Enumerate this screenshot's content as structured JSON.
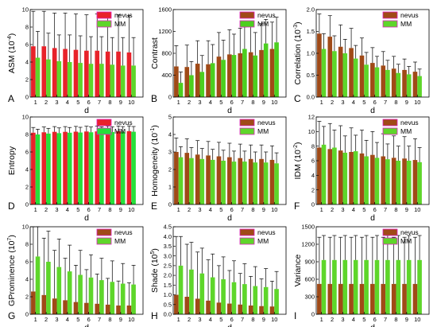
{
  "series_colors": {
    "nevus_variants": [
      "#e8222a",
      "#a04a17",
      "#a04a17",
      "#e8222a",
      "#a04a17",
      "#a04a17",
      "#a04a17",
      "#a04a17",
      "#a04a17"
    ],
    "mm_variants": [
      "#5ed62a",
      "#4ccf1f",
      "#5ed62a",
      "#26e03a",
      "#5ed62a",
      "#5ed62a",
      "#5ed62a",
      "#5ed62a",
      "#5ed62a"
    ],
    "legend_frame": "#e020c0"
  },
  "chart_data": [
    {
      "type": "bar",
      "panel": "A",
      "xlabel": "d",
      "ylabel": "ASM (10",
      "ylabel_sup": "-4",
      "ylabel_end": ")",
      "ylim": [
        0,
        10
      ],
      "yticks": [
        "0",
        "2",
        "4",
        "6",
        "8",
        "10"
      ],
      "categories": [
        "1",
        "2",
        "3",
        "4",
        "5",
        "6",
        "7",
        "8",
        "9",
        "10"
      ],
      "legend_position": "top-right",
      "series": [
        {
          "name": "nevus",
          "values": [
            5.8,
            5.8,
            5.6,
            5.5,
            5.4,
            5.3,
            5.3,
            5.2,
            5.2,
            5.1
          ],
          "errors": [
            4.0,
            4.0,
            4.0,
            4.1,
            4.1,
            4.1,
            4.2,
            4.2,
            4.2,
            4.2
          ]
        },
        {
          "name": "MM",
          "values": [
            4.5,
            4.3,
            4.1,
            4.0,
            3.9,
            3.8,
            3.8,
            3.7,
            3.6,
            3.6
          ],
          "errors": [
            3.0,
            3.0,
            3.0,
            3.1,
            3.1,
            3.1,
            3.1,
            3.1,
            3.2,
            3.2
          ]
        }
      ]
    },
    {
      "type": "bar",
      "panel": "B",
      "xlabel": "d",
      "ylabel": "Contrast",
      "ylabel_sup": "",
      "ylabel_end": "",
      "ylim": [
        0,
        1600
      ],
      "yticks": [
        "0",
        "400",
        "800",
        "1200",
        "1600"
      ],
      "categories": [
        "1",
        "2",
        "3",
        "4",
        "5",
        "6",
        "7",
        "8",
        "9",
        "10"
      ],
      "legend_position": "top-right",
      "series": [
        {
          "name": "nevus",
          "values": [
            560,
            550,
            610,
            600,
            740,
            780,
            800,
            820,
            860,
            880
          ],
          "errors": [
            380,
            400,
            420,
            430,
            440,
            450,
            460,
            470,
            480,
            490
          ]
        },
        {
          "name": "MM",
          "values": [
            260,
            400,
            460,
            620,
            680,
            770,
            880,
            760,
            980,
            1000
          ],
          "errors": [
            200,
            250,
            300,
            340,
            360,
            380,
            400,
            420,
            440,
            460
          ]
        }
      ]
    },
    {
      "type": "bar",
      "panel": "C",
      "xlabel": "d",
      "ylabel": "Correlation (10",
      "ylabel_sup": "-3",
      "ylabel_end": ")",
      "ylim": [
        0,
        2.0
      ],
      "yticks": [
        "0.0",
        "0.5",
        "1.0",
        "1.5",
        "2.0"
      ],
      "categories": [
        "1",
        "2",
        "3",
        "4",
        "5",
        "6",
        "7",
        "8",
        "9",
        "10"
      ],
      "legend_position": "top-right",
      "series": [
        {
          "name": "nevus",
          "values": [
            1.45,
            1.38,
            1.15,
            1.12,
            0.95,
            0.78,
            0.72,
            0.65,
            0.62,
            0.58
          ],
          "errors": [
            0.45,
            0.48,
            0.5,
            0.45,
            0.4,
            0.35,
            0.32,
            0.28,
            0.25,
            0.22
          ]
        },
        {
          "name": "MM",
          "values": [
            1.1,
            1.05,
            1.0,
            0.88,
            0.74,
            0.68,
            0.62,
            0.55,
            0.52,
            0.48
          ],
          "errors": [
            0.35,
            0.35,
            0.32,
            0.3,
            0.28,
            0.25,
            0.22,
            0.2,
            0.18,
            0.16
          ]
        }
      ]
    },
    {
      "type": "bar",
      "panel": "D",
      "xlabel": "d",
      "ylabel": "Entropy",
      "ylabel_sup": "",
      "ylabel_end": "",
      "ylim": [
        0,
        10
      ],
      "yticks": [
        "0",
        "2",
        "4",
        "6",
        "8",
        "10"
      ],
      "categories": [
        "1",
        "2",
        "3",
        "4",
        "5",
        "6",
        "7",
        "8",
        "9",
        "10"
      ],
      "legend_position": "top-right",
      "series": [
        {
          "name": "nevus",
          "values": [
            8.2,
            8.25,
            8.3,
            8.3,
            8.32,
            8.34,
            8.35,
            8.36,
            8.37,
            8.38
          ],
          "errors": [
            0.6,
            0.6,
            0.6,
            0.6,
            0.6,
            0.6,
            0.6,
            0.6,
            0.6,
            0.6
          ]
        },
        {
          "name": "MM",
          "values": [
            8.0,
            8.1,
            8.15,
            8.2,
            8.22,
            8.25,
            8.27,
            8.28,
            8.3,
            8.31
          ],
          "errors": [
            0.6,
            0.6,
            0.6,
            0.6,
            0.6,
            0.6,
            0.6,
            0.6,
            0.6,
            0.6
          ]
        }
      ]
    },
    {
      "type": "bar",
      "panel": "E",
      "xlabel": "d",
      "ylabel": "Homogeneity (10",
      "ylabel_sup": "-1",
      "ylabel_end": ")",
      "ylim": [
        0,
        5
      ],
      "yticks": [
        "0",
        "1",
        "2",
        "3",
        "4",
        "5"
      ],
      "categories": [
        "1",
        "2",
        "3",
        "4",
        "5",
        "6",
        "7",
        "8",
        "9",
        "10"
      ],
      "legend_position": "top-right",
      "series": [
        {
          "name": "nevus",
          "values": [
            3.0,
            2.95,
            2.85,
            2.8,
            2.75,
            2.7,
            2.65,
            2.6,
            2.6,
            2.55
          ],
          "errors": [
            0.8,
            0.8,
            0.8,
            0.8,
            0.8,
            0.8,
            0.8,
            0.8,
            0.8,
            0.8
          ]
        },
        {
          "name": "MM",
          "values": [
            2.7,
            2.65,
            2.6,
            2.55,
            2.5,
            2.45,
            2.45,
            2.4,
            2.4,
            2.35
          ],
          "errors": [
            0.6,
            0.6,
            0.6,
            0.6,
            0.6,
            0.6,
            0.6,
            0.6,
            0.6,
            0.6
          ]
        }
      ]
    },
    {
      "type": "bar",
      "panel": "F",
      "xlabel": "d",
      "ylabel": "IDM (10",
      "ylabel_sup": "-2",
      "ylabel_end": ")",
      "ylim": [
        0,
        12
      ],
      "yticks": [
        "0",
        "2",
        "4",
        "6",
        "8",
        "10",
        "12"
      ],
      "categories": [
        "1",
        "2",
        "3",
        "4",
        "5",
        "6",
        "7",
        "8",
        "9",
        "10"
      ],
      "legend_position": "top-right",
      "series": [
        {
          "name": "nevus",
          "values": [
            7.8,
            7.6,
            7.4,
            7.2,
            7.0,
            6.8,
            6.6,
            6.4,
            6.3,
            6.1
          ],
          "errors": [
            3.6,
            3.5,
            3.4,
            3.3,
            3.2,
            3.2,
            3.1,
            3.0,
            3.0,
            2.9
          ]
        },
        {
          "name": "MM",
          "values": [
            8.2,
            7.8,
            7.1,
            7.3,
            6.6,
            6.4,
            6.2,
            6.0,
            6.0,
            5.8
          ],
          "errors": [
            2.5,
            2.4,
            2.3,
            2.2,
            2.2,
            2.1,
            2.1,
            2.0,
            2.0,
            2.0
          ]
        }
      ]
    },
    {
      "type": "bar",
      "panel": "G",
      "xlabel": "d",
      "ylabel": "GProminence (10",
      "ylabel_sup": "7",
      "ylabel_end": ")",
      "ylim": [
        0,
        10
      ],
      "yticks": [
        "0",
        "2",
        "4",
        "6",
        "8",
        "10"
      ],
      "categories": [
        "1",
        "2",
        "3",
        "4",
        "5",
        "6",
        "7",
        "8",
        "9",
        "10"
      ],
      "legend_position": "top-right",
      "series": [
        {
          "name": "nevus",
          "values": [
            2.6,
            2.2,
            1.8,
            1.6,
            1.4,
            1.3,
            1.2,
            1.1,
            1.0,
            1.0
          ],
          "errors": [
            7.8,
            6.5,
            5.5,
            4.8,
            4.2,
            3.8,
            3.4,
            3.0,
            2.8,
            2.6
          ]
        },
        {
          "name": "MM",
          "values": [
            6.6,
            6.0,
            5.4,
            4.9,
            4.5,
            4.2,
            3.9,
            3.7,
            3.5,
            3.4
          ],
          "errors": [
            3.8,
            3.5,
            3.2,
            3.0,
            2.8,
            2.6,
            2.5,
            2.4,
            2.3,
            2.2
          ]
        }
      ]
    },
    {
      "type": "bar",
      "panel": "H",
      "xlabel": "d",
      "ylabel": "Shade (10",
      "ylabel_sup": "5",
      "ylabel_end": ")",
      "ylim": [
        0,
        4.5
      ],
      "yticks": [
        "0.0",
        "0.5",
        "1.0",
        "1.5",
        "2.0",
        "2.5",
        "3.0",
        "3.5",
        "4.0",
        "4.5"
      ],
      "categories": [
        "1",
        "2",
        "3",
        "4",
        "5",
        "6",
        "7",
        "8",
        "9",
        "10"
      ],
      "legend_position": "top-right",
      "series": [
        {
          "name": "nevus",
          "values": [
            1.0,
            0.9,
            0.8,
            0.7,
            0.6,
            0.55,
            0.5,
            0.45,
            0.42,
            0.4
          ],
          "errors": [
            3.0,
            2.7,
            2.4,
            2.1,
            1.9,
            1.7,
            1.6,
            1.5,
            1.4,
            1.3
          ]
        },
        {
          "name": "MM",
          "values": [
            2.5,
            2.3,
            2.1,
            1.9,
            1.8,
            1.65,
            1.55,
            1.45,
            1.4,
            1.3
          ],
          "errors": [
            1.5,
            1.4,
            1.3,
            1.2,
            1.15,
            1.1,
            1.05,
            1.0,
            0.95,
            0.9
          ]
        }
      ]
    },
    {
      "type": "bar",
      "panel": "I",
      "xlabel": "d",
      "ylabel": "Variance",
      "ylabel_sup": "",
      "ylabel_end": "",
      "ylim": [
        0,
        1500
      ],
      "yticks": [
        "0",
        "300",
        "600",
        "900",
        "1200",
        "1500"
      ],
      "categories": [
        "1",
        "2",
        "3",
        "4",
        "5",
        "6",
        "7",
        "8",
        "9",
        "10"
      ],
      "legend_position": "top-right",
      "series": [
        {
          "name": "nevus",
          "values": [
            520,
            520,
            520,
            520,
            520,
            520,
            520,
            520,
            520,
            520
          ],
          "errors": [
            800,
            800,
            800,
            800,
            800,
            800,
            800,
            800,
            800,
            800
          ]
        },
        {
          "name": "MM",
          "values": [
            930,
            930,
            930,
            930,
            930,
            930,
            930,
            930,
            930,
            930
          ],
          "errors": [
            420,
            420,
            420,
            420,
            420,
            420,
            420,
            420,
            420,
            420
          ]
        }
      ]
    }
  ]
}
